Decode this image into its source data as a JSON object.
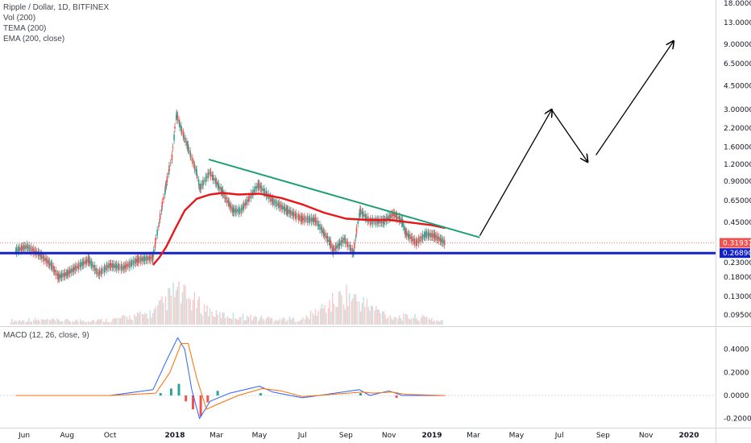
{
  "chart_data": [
    {
      "type": "line",
      "title": "Ripple / Dollar, 1D, BITFINEX",
      "indicators": [
        "Vol (200)",
        "TEMA (200)",
        "EMA (200, close)"
      ],
      "scale": "log",
      "ylim": [
        0.07,
        20
      ],
      "y_ticks": [
        "18.00000",
        "13.00000",
        "9.00000",
        "6.50000",
        "4.50000",
        "3.00000",
        "2.20000",
        "1.60000",
        "1.20000",
        "0.90000",
        "0.65000",
        "0.45000",
        "0.33000",
        "0.23000",
        "0.18000",
        "0.13000",
        "0.09500"
      ],
      "y_tick_values": [
        18,
        13,
        9,
        6.5,
        4.5,
        3,
        2.2,
        1.6,
        1.2,
        0.9,
        0.65,
        0.45,
        0.33,
        0.23,
        0.18,
        0.13,
        0.095
      ],
      "x_ticks": [
        "Jun",
        "Aug",
        "Oct",
        "2018",
        "Mar",
        "May",
        "Jul",
        "Sep",
        "Nov",
        "2019",
        "Mar",
        "May",
        "Jul",
        "Sep",
        "Nov",
        "2020"
      ],
      "current_price": "0.31937",
      "support_level": "0.26890",
      "price_series": {
        "name": "",
        "x": [
          "2017-05-20",
          "2017-06-05",
          "2017-06-25",
          "2017-07-10",
          "2017-07-20",
          "2017-08-01",
          "2017-08-20",
          "2017-09-01",
          "2017-09-15",
          "2017-10-01",
          "2017-10-20",
          "2017-11-10",
          "2017-12-01",
          "2017-12-10",
          "2017-12-20",
          "2017-12-28",
          "2018-01-04",
          "2018-01-10",
          "2018-01-20",
          "2018-02-01",
          "2018-02-06",
          "2018-02-20",
          "2018-03-10",
          "2018-03-25",
          "2018-04-05",
          "2018-04-30",
          "2018-05-20",
          "2018-06-10",
          "2018-06-30",
          "2018-07-20",
          "2018-08-10",
          "2018-08-14",
          "2018-08-30",
          "2018-09-12",
          "2018-09-21",
          "2018-10-05",
          "2018-10-25",
          "2018-11-08",
          "2018-11-20",
          "2018-11-25",
          "2018-12-10",
          "2018-12-24",
          "2019-01-05",
          "2019-01-20"
        ],
        "y": [
          0.28,
          0.3,
          0.26,
          0.22,
          0.18,
          0.19,
          0.22,
          0.24,
          0.19,
          0.22,
          0.21,
          0.24,
          0.25,
          0.45,
          0.85,
          1.35,
          2.8,
          2.2,
          1.6,
          1.05,
          0.8,
          1.05,
          0.75,
          0.55,
          0.55,
          0.85,
          0.65,
          0.55,
          0.48,
          0.47,
          0.32,
          0.28,
          0.34,
          0.27,
          0.55,
          0.46,
          0.46,
          0.52,
          0.46,
          0.38,
          0.32,
          0.37,
          0.36,
          0.32
        ]
      },
      "ema_series": {
        "name": "",
        "color": "#e8161a",
        "x": [
          "2017-12-01",
          "2017-12-10",
          "2017-12-20",
          "2018-01-01",
          "2018-01-15",
          "2018-02-01",
          "2018-02-20",
          "2018-03-10",
          "2018-04-01",
          "2018-05-01",
          "2018-06-01",
          "2018-07-01",
          "2018-08-01",
          "2018-09-01",
          "2018-10-01",
          "2018-11-01",
          "2018-12-01",
          "2019-01-01",
          "2019-01-20"
        ],
        "y": [
          0.22,
          0.25,
          0.3,
          0.4,
          0.55,
          0.67,
          0.72,
          0.74,
          0.72,
          0.73,
          0.68,
          0.61,
          0.53,
          0.48,
          0.47,
          0.47,
          0.45,
          0.43,
          0.41
        ]
      },
      "trendline": {
        "color": "#1e9f78",
        "x": [
          "2018-02-18",
          "2019-03-10"
        ],
        "y": [
          1.3,
          0.35
        ]
      },
      "support_line_color": "#1421c7",
      "projection": {
        "color": "#000000",
        "x": [
          "2019-03-10",
          "2019-06-20",
          "2019-08-10",
          "2019-08-22",
          "2019-12-10"
        ],
        "y": [
          0.36,
          3.0,
          1.25,
          1.4,
          9.5
        ]
      },
      "volume": {
        "x": [
          "2017-06",
          "2017-08",
          "2017-10",
          "2017-12",
          "2018-01",
          "2018-03",
          "2018-05",
          "2018-07",
          "2018-09",
          "2018-11",
          "2019-01"
        ],
        "level": [
          0.15,
          0.12,
          0.14,
          0.35,
          1.0,
          0.3,
          0.2,
          0.15,
          0.9,
          0.25,
          0.2
        ]
      }
    },
    {
      "type": "line",
      "title": "MACD (12, 26, close, 9)",
      "ylim": [
        -0.25,
        0.55
      ],
      "y_ticks": [
        "0.4000",
        "0.2000",
        "0.0000",
        "-0.2000"
      ],
      "y_tick_values": [
        0.4,
        0.2,
        0,
        -0.2
      ],
      "series": [
        {
          "name": "",
          "color": "#2962ff",
          "x": [
            "2017-05-20",
            "2017-10-01",
            "2017-12-01",
            "2017-12-20",
            "2018-01-05",
            "2018-01-15",
            "2018-01-25",
            "2018-02-05",
            "2018-02-20",
            "2018-03-20",
            "2018-05-01",
            "2018-05-20",
            "2018-07-01",
            "2018-09-20",
            "2018-10-05",
            "2018-11-01",
            "2018-11-20",
            "2019-01-20"
          ],
          "y": [
            0.0,
            0.0,
            0.05,
            0.3,
            0.5,
            0.4,
            0.05,
            -0.2,
            -0.05,
            0.02,
            0.08,
            0.03,
            -0.02,
            0.05,
            0.0,
            0.04,
            0.0,
            0.0
          ]
        },
        {
          "name": "",
          "color": "#ff6d00",
          "x": [
            "2017-05-20",
            "2017-10-01",
            "2017-12-05",
            "2017-12-25",
            "2018-01-10",
            "2018-01-20",
            "2018-02-01",
            "2018-02-15",
            "2018-03-01",
            "2018-04-01",
            "2018-05-05",
            "2018-06-01",
            "2018-07-01",
            "2018-09-25",
            "2018-10-10",
            "2018-11-05",
            "2018-11-25",
            "2019-01-20"
          ],
          "y": [
            0.0,
            0.0,
            0.02,
            0.2,
            0.45,
            0.45,
            0.15,
            -0.12,
            -0.08,
            0.0,
            0.06,
            0.04,
            -0.01,
            0.03,
            0.02,
            0.03,
            0.01,
            0.0
          ]
        }
      ],
      "histogram": {
        "x": [
          "2017-12-10",
          "2017-12-25",
          "2018-01-05",
          "2018-01-15",
          "2018-01-25",
          "2018-02-05",
          "2018-02-15",
          "2018-03-01",
          "2018-05-01",
          "2018-09-20",
          "2018-11-10"
        ],
        "y": [
          0.02,
          0.06,
          0.1,
          -0.05,
          -0.12,
          -0.18,
          -0.06,
          0.04,
          0.02,
          0.02,
          -0.02
        ]
      },
      "x_ticks": [
        "Jun",
        "Aug",
        "Oct",
        "2018",
        "Mar",
        "May",
        "Jul",
        "Sep",
        "Nov",
        "2019",
        "Mar",
        "May",
        "Jul",
        "Sep",
        "Nov",
        "2020"
      ]
    }
  ]
}
